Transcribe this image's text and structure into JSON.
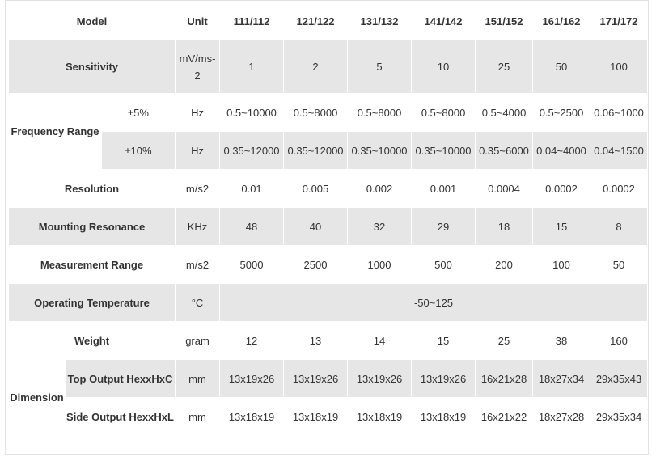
{
  "header": {
    "model": "Model",
    "unit": "Unit",
    "models": [
      "111/112",
      "121/122",
      "131/132",
      "141/142",
      "151/152",
      "161/162",
      "171/172"
    ]
  },
  "sensitivity": {
    "label": "Sensitivity",
    "unit_line1": "mV/ms-",
    "unit_line2": "2",
    "values": [
      "1",
      "2",
      "5",
      "10",
      "25",
      "50",
      "100"
    ]
  },
  "frequency_range": {
    "label": "Frequency Range",
    "rows": [
      {
        "sub": "±5%",
        "unit": "Hz",
        "values": [
          "0.5~10000",
          "0.5~8000",
          "0.5~8000",
          "0.5~8000",
          "0.5~4000",
          "0.5~2500",
          "0.06~1000"
        ]
      },
      {
        "sub": "±10%",
        "unit": "Hz",
        "values": [
          "0.35~12000",
          "0.35~12000",
          "0.35~10000",
          "0.35~10000",
          "0.35~6000",
          "0.04~4000",
          "0.04~1500"
        ]
      }
    ]
  },
  "resolution": {
    "label": "Resolution",
    "unit": "m/s2",
    "values": [
      "0.01",
      "0.005",
      "0.002",
      "0.001",
      "0.0004",
      "0.0002",
      "0.0002"
    ]
  },
  "mounting_resonance": {
    "label": "Mounting Resonance",
    "unit": "KHz",
    "values": [
      "48",
      "40",
      "32",
      "29",
      "18",
      "15",
      "8"
    ]
  },
  "measurement_range": {
    "label": "Measurement Range",
    "unit": "m/s2",
    "values": [
      "5000",
      "2500",
      "1000",
      "500",
      "200",
      "100",
      "50"
    ]
  },
  "operating_temperature": {
    "label": "Operating Temperature",
    "unit": "°C",
    "value": "-50~125"
  },
  "weight": {
    "label": "Weight",
    "unit": "gram",
    "values": [
      "12",
      "13",
      "14",
      "15",
      "25",
      "38",
      "160"
    ]
  },
  "dimension": {
    "label": "Dimension",
    "rows": [
      {
        "sub": "Top Output HexxHxC",
        "unit": "mm",
        "values": [
          "13x19x26",
          "13x19x26",
          "13x19x26",
          "13x19x26",
          "16x21x28",
          "18x27x34",
          "29x35x43"
        ]
      },
      {
        "sub": "Side Output HexxHxL",
        "unit": "mm",
        "values": [
          "13x18x19",
          "13x18x19",
          "13x18x19",
          "13x18x19",
          "16x21x22",
          "18x27x28",
          "29x35x34"
        ]
      }
    ]
  }
}
